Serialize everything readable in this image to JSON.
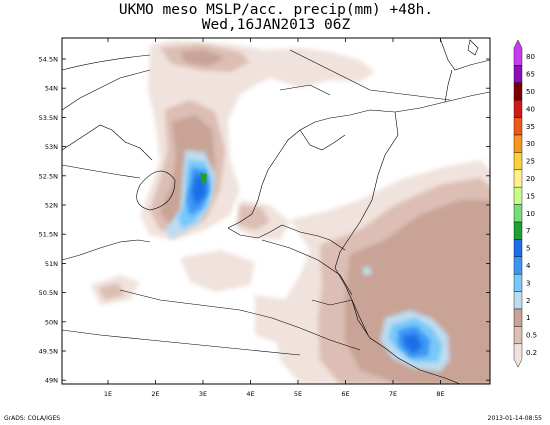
{
  "title": {
    "line1": "UKMO meso MSLP/acc. precip(mm) +48h.",
    "line2": "Wed,16JAN2013 06Z"
  },
  "axes": {
    "lat_labels": [
      "54.5N",
      "54N",
      "53.5N",
      "53N",
      "52.5N",
      "52N",
      "51.5N",
      "51N",
      "50.5N",
      "50N",
      "49.5N",
      "49N"
    ],
    "lon_labels": [
      "1E",
      "2E",
      "3E",
      "4E",
      "5E",
      "6E",
      "7E",
      "8E"
    ]
  },
  "legend": {
    "levels": [
      {
        "label": "80",
        "color": "#c83cf0"
      },
      {
        "label": "65",
        "color": "#8c0fb4"
      },
      {
        "label": "50",
        "color": "#7a0000"
      },
      {
        "label": "40",
        "color": "#d21919"
      },
      {
        "label": "35",
        "color": "#f05a19"
      },
      {
        "label": "30",
        "color": "#f5961e"
      },
      {
        "label": "25",
        "color": "#fad23c"
      },
      {
        "label": "20",
        "color": "#fff08c"
      },
      {
        "label": "15",
        "color": "#c8ff8c"
      },
      {
        "label": "10",
        "color": "#78dc78"
      },
      {
        "label": "7",
        "color": "#1ea032"
      },
      {
        "label": "5",
        "color": "#1e6ee6"
      },
      {
        "label": "4",
        "color": "#3c96f5"
      },
      {
        "label": "3",
        "color": "#78c8fa"
      },
      {
        "label": "2",
        "color": "#bedcf0"
      },
      {
        "label": "1",
        "color": "#c8a396"
      },
      {
        "label": "0.5",
        "color": "#dcbeb4"
      },
      {
        "label": "0.2",
        "color": "#f0e2dc"
      }
    ]
  },
  "footer": {
    "left": "GrADS: COLA/IGES",
    "right": "2013-01-14-08:55"
  }
}
